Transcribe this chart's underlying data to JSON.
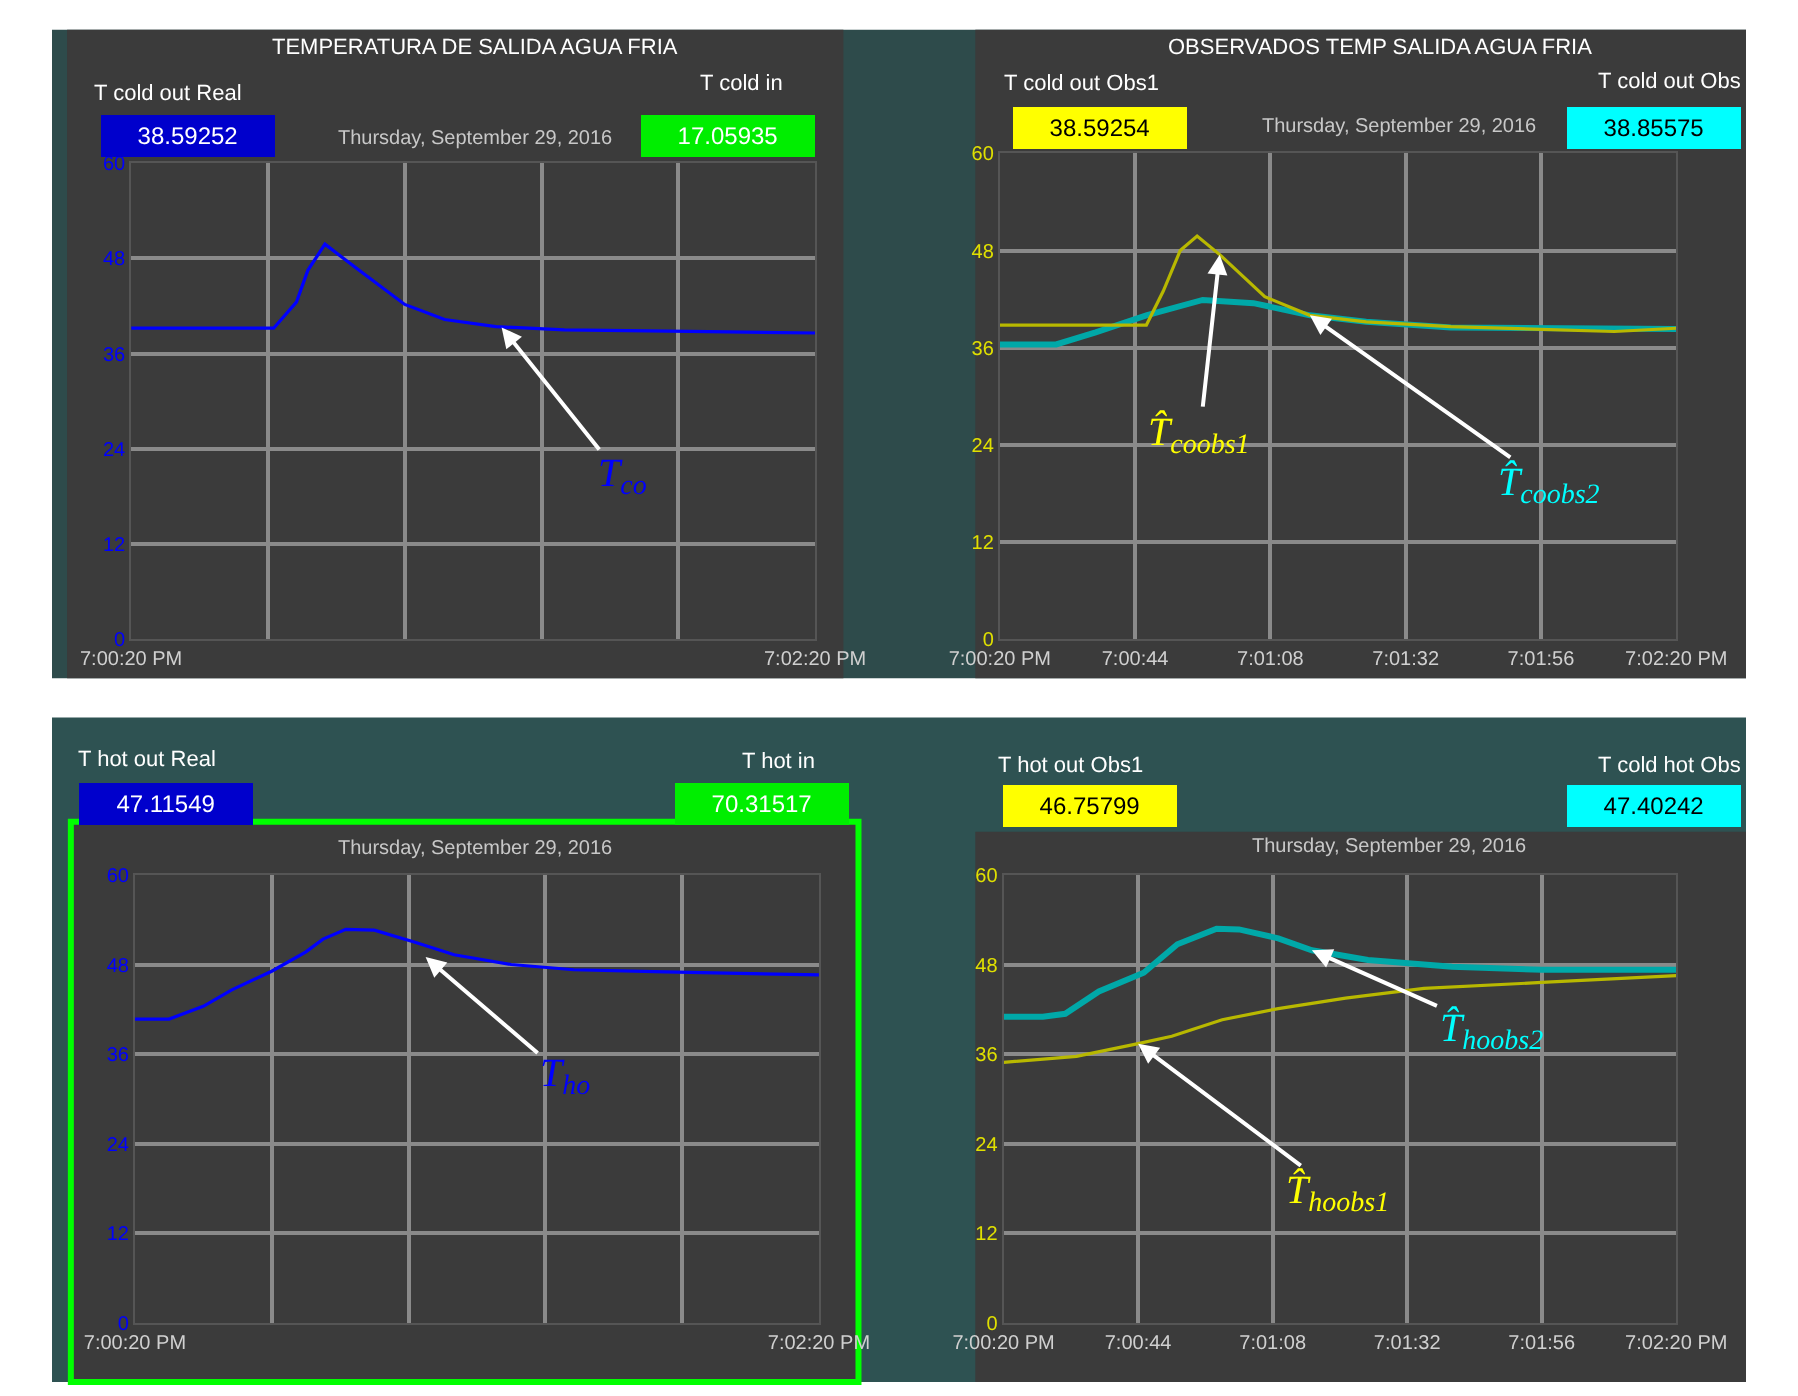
{
  "chart_data": [
    {
      "type": "line",
      "title": "TEMPERATURA DE SALIDA AGUA FRIA",
      "subtitle": "Thursday, September 29, 2016",
      "xlim": [
        "2016-09-29T19:00:20",
        "2016-09-29T19:02:20"
      ],
      "xticks": [
        {
          "value": "2016-09-29T19:00:20",
          "label": "7:00:20 PM"
        },
        {
          "value": "2016-09-29T19:00:44",
          "label": null
        },
        {
          "value": "2016-09-29T19:01:08",
          "label": null
        },
        {
          "value": "2016-09-29T19:01:32",
          "label": null
        },
        {
          "value": "2016-09-29T19:01:56",
          "label": null
        },
        {
          "value": "2016-09-29T19:02:20",
          "label": "7:02:20 PM"
        }
      ],
      "ylim": [
        0,
        60
      ],
      "yticks": [
        0,
        12,
        24,
        36,
        48,
        60
      ],
      "grid": true,
      "series": [
        {
          "color": "#0000ff",
          "x": [
            "2016-09-29T19:00:20",
            "2016-09-29T19:00:45",
            "2016-09-29T19:00:49",
            "2016-09-29T19:00:51",
            "2016-09-29T19:00:54",
            "2016-09-29T19:01:00",
            "2016-09-29T19:01:08",
            "2016-09-29T19:01:15",
            "2016-09-29T19:01:24",
            "2016-09-29T19:01:36",
            "2016-09-29T19:01:58",
            "2016-09-29T19:02:20"
          ],
          "values": [
            39.2,
            39.2,
            42.5,
            46.5,
            49.8,
            46.5,
            42.2,
            40.3,
            39.4,
            39.0,
            38.8,
            38.6
          ]
        }
      ],
      "annotations": [
        "T cold out Real",
        "38.59252",
        "T cold in",
        "17.05935",
        {
          "text": "T$_{co}$",
          "x": "2016-09-29T19:01:25",
          "y": 39.3
        }
      ]
    },
    {
      "type": "line",
      "title": "OBSERVADOS TEMP SALIDA AGUA FRIA",
      "subtitle": "Thursday, September 29, 2016",
      "xlim": [
        "2016-09-29T19:00:20",
        "2016-09-29T19:02:20"
      ],
      "xticks": [
        {
          "value": "2016-09-29T19:00:20",
          "label": "7:00:20 PM"
        },
        {
          "value": "2016-09-29T19:00:44",
          "label": "7:00:44"
        },
        {
          "value": "2016-09-29T19:01:08",
          "label": "7:01:08"
        },
        {
          "value": "2016-09-29T19:01:32",
          "label": "7:01:32"
        },
        {
          "value": "2016-09-29T19:01:56",
          "label": "7:01:56"
        },
        {
          "value": "2016-09-29T19:02:20",
          "label": "7:02:20 PM"
        }
      ],
      "ylim": [
        0,
        60
      ],
      "yticks": [
        0,
        12,
        24,
        36,
        48,
        60
      ],
      "grid": true,
      "series": [
        {
          "color": "#b8b800",
          "x": [
            "2016-09-29T19:00:20",
            "2016-09-29T19:00:46",
            "2016-09-29T19:00:49",
            "2016-09-29T19:00:52",
            "2016-09-29T19:00:55",
            "2016-09-29T19:00:59",
            "2016-09-29T19:01:07",
            "2016-09-29T19:01:15",
            "2016-09-29T19:01:25",
            "2016-09-29T19:01:40",
            "2016-09-29T19:02:09",
            "2016-09-29T19:02:20"
          ],
          "values": [
            38.8,
            38.8,
            43,
            48,
            49.8,
            47.5,
            42.3,
            40,
            39.2,
            38.6,
            38.0,
            38.4
          ]
        },
        {
          "color": "#00a8a8",
          "x": [
            "2016-09-29T19:00:20",
            "2016-09-29T19:00:30",
            "2016-09-29T19:00:37",
            "2016-09-29T19:00:46",
            "2016-09-29T19:00:56",
            "2016-09-29T19:01:05",
            "2016-09-29T19:01:15",
            "2016-09-29T19:01:25",
            "2016-09-29T19:01:40",
            "2016-09-29T19:02:20"
          ],
          "values": [
            36.4,
            36.4,
            37.9,
            40,
            41.9,
            41.5,
            40,
            39.2,
            38.5,
            38.3
          ]
        }
      ],
      "annotations": [
        "T cold out Obs1",
        "38.59254",
        "T cold out Obs",
        "38.85575",
        {
          "text": "T̂$_{coobs1}$",
          "x": "2016-09-29T19:00:59",
          "y": 47.5
        },
        {
          "text": "T̂$_{coobs2}$",
          "x": "2016-09-29T19:01:15",
          "y": 40
        }
      ]
    },
    {
      "type": "line",
      "subtitle": "Thursday, September 29, 2016",
      "xlim": [
        "2016-09-29T19:00:20",
        "2016-09-29T19:02:20"
      ],
      "xticks": [
        {
          "value": "2016-09-29T19:00:20",
          "label": "7:00:20 PM"
        },
        {
          "value": "2016-09-29T19:00:44",
          "label": null
        },
        {
          "value": "2016-09-29T19:01:08",
          "label": null
        },
        {
          "value": "2016-09-29T19:01:32",
          "label": null
        },
        {
          "value": "2016-09-29T19:01:56",
          "label": null
        },
        {
          "value": "2016-09-29T19:02:20",
          "label": "7:02:20 PM"
        }
      ],
      "ylim": [
        0,
        60
      ],
      "yticks": [
        0,
        12,
        24,
        36,
        48,
        60
      ],
      "grid": true,
      "series": [
        {
          "color": "#0000ff",
          "x": [
            "2016-09-29T19:00:20",
            "2016-09-29T19:00:26",
            "2016-09-29T19:00:32",
            "2016-09-29T19:00:37",
            "2016-09-29T19:00:44",
            "2016-09-29T19:00:50",
            "2016-09-29T19:00:53",
            "2016-09-29T19:00:57",
            "2016-09-29T19:01:02",
            "2016-09-29T19:01:09",
            "2016-09-29T19:01:16",
            "2016-09-29T19:01:26",
            "2016-09-29T19:01:37",
            "2016-09-29T19:01:53",
            "2016-09-29T19:02:20"
          ],
          "values": [
            40.7,
            40.7,
            42.4,
            44.6,
            47.1,
            49.7,
            51.4,
            52.7,
            52.6,
            51,
            49.3,
            48,
            47.3,
            47,
            46.6
          ]
        }
      ],
      "annotations": [
        "T hot out Real",
        "47.11549",
        "T hot in",
        "70.31517",
        {
          "text": "T$_{ho}$",
          "x": "2016-09-29T19:01:11",
          "y": 49
        }
      ]
    },
    {
      "type": "line",
      "subtitle": "Thursday, September 29, 2016",
      "xlim": [
        "2016-09-29T19:00:20",
        "2016-09-29T19:02:20"
      ],
      "xticks": [
        {
          "value": "2016-09-29T19:00:20",
          "label": "7:00:20 PM"
        },
        {
          "value": "2016-09-29T19:00:44",
          "label": "7:00:44"
        },
        {
          "value": "2016-09-29T19:01:08",
          "label": "7:01:08"
        },
        {
          "value": "2016-09-29T19:01:32",
          "label": "7:01:32"
        },
        {
          "value": "2016-09-29T19:01:56",
          "label": "7:01:56"
        },
        {
          "value": "2016-09-29T19:02:20",
          "label": "7:02:20 PM"
        }
      ],
      "ylim": [
        0,
        60
      ],
      "yticks": [
        0,
        12,
        24,
        36,
        48,
        60
      ],
      "grid": true,
      "series": [
        {
          "color": "#b8b800",
          "x": [
            "2016-09-29T19:00:20",
            "2016-09-29T19:00:33",
            "2016-09-29T19:00:44",
            "2016-09-29T19:00:50",
            "2016-09-29T19:00:59",
            "2016-09-29T19:01:09",
            "2016-09-29T19:01:21",
            "2016-09-29T19:01:35",
            "2016-09-29T19:01:56",
            "2016-09-29T19:02:20"
          ],
          "values": [
            34.9,
            35.7,
            37.4,
            38.4,
            40.6,
            42.1,
            43.5,
            44.8,
            45.6,
            46.5
          ]
        },
        {
          "color": "#00a8a8",
          "x": [
            "2016-09-29T19:00:20",
            "2016-09-29T19:00:27",
            "2016-09-29T19:00:31",
            "2016-09-29T19:00:37",
            "2016-09-29T19:00:45",
            "2016-09-29T19:00:51",
            "2016-09-29T19:00:58",
            "2016-09-29T19:01:02",
            "2016-09-29T19:01:09",
            "2016-09-29T19:01:15",
            "2016-09-29T19:01:25",
            "2016-09-29T19:01:40",
            "2016-09-29T19:01:56",
            "2016-09-29T19:02:20"
          ],
          "values": [
            41,
            41,
            41.4,
            44.4,
            46.9,
            50.7,
            52.8,
            52.7,
            51.5,
            49.9,
            48.6,
            47.7,
            47.3,
            47.3
          ]
        }
      ],
      "annotations": [
        "T hot out Obs1",
        "46.75799",
        "T cold hot Obs",
        "47.40242",
        {
          "text": "T̂$_{hoobs1}$",
          "x": "2016-09-29T19:00:44",
          "y": 37.4
        },
        {
          "text": "T̂$_{hoobs2}$",
          "x": "2016-09-29T19:01:15",
          "y": 49.9
        }
      ]
    }
  ]
}
